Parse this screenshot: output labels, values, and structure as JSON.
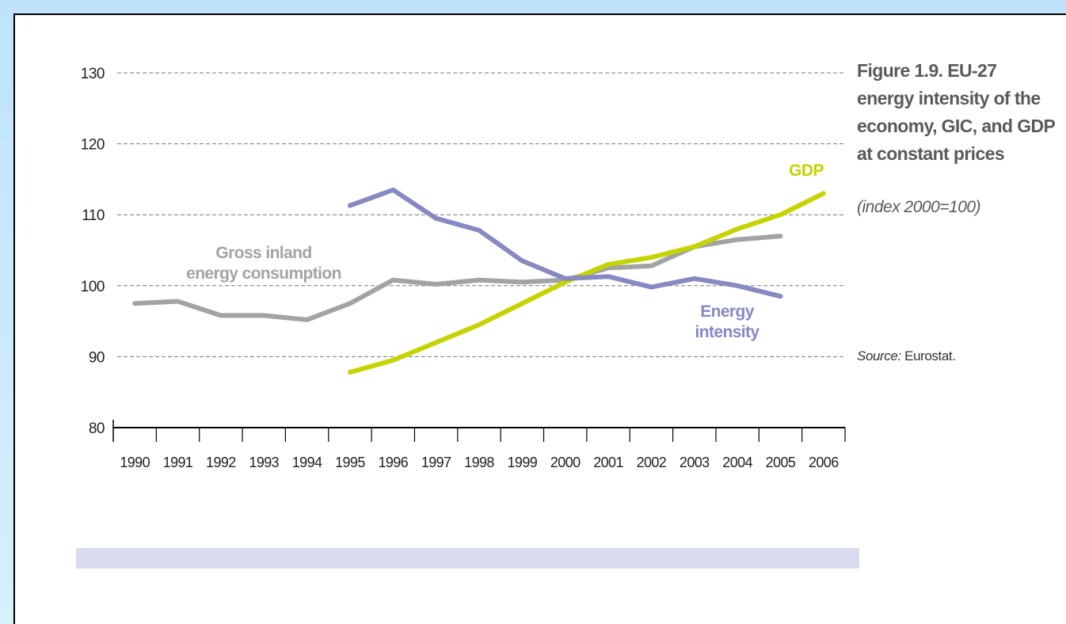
{
  "chart_data": {
    "type": "line",
    "title": "Figure 1.9. EU-27 energy intensity of the economy, GIC, and GDP at constant prices",
    "subtitle": "(index 2000=100)",
    "source": {
      "label": "Source:",
      "text": "Eurostat."
    },
    "categories": [
      "1990",
      "1991",
      "1992",
      "1993",
      "1994",
      "1995",
      "1996",
      "1997",
      "1998",
      "1999",
      "2000",
      "2001",
      "2002",
      "2003",
      "2004",
      "2005",
      "2006"
    ],
    "series": [
      {
        "name": "Gross inland energy consumption",
        "color": "#a3a3a3",
        "values": [
          97.5,
          97.8,
          95.8,
          95.8,
          95.2,
          97.5,
          100.8,
          100.2,
          100.8,
          100.5,
          100.8,
          102.5,
          102.8,
          105.5,
          106.5,
          107,
          null
        ]
      },
      {
        "name": "GDP",
        "color": "#c5d300",
        "values": [
          null,
          null,
          null,
          null,
          null,
          87.8,
          89.5,
          92,
          94.5,
          97.5,
          100.5,
          103,
          104,
          105.5,
          108,
          110,
          113
        ]
      },
      {
        "name": "Energy intensity",
        "color": "#8789c3",
        "values": [
          null,
          null,
          null,
          null,
          null,
          111.3,
          113.5,
          109.5,
          107.8,
          103.5,
          101,
          101.3,
          99.8,
          101,
          100,
          98.5,
          null
        ]
      }
    ],
    "ylim": [
      80,
      130
    ],
    "yticks": [
      80,
      90,
      100,
      110,
      120,
      130
    ],
    "grid": true
  }
}
